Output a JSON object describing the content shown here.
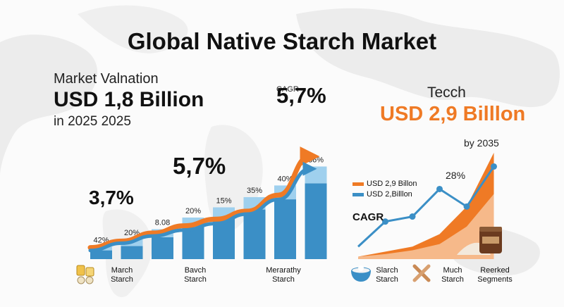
{
  "title": "Global Native Starch Market",
  "valuation": {
    "label": "Market Valnation",
    "amount": "USD 1,8 Billion",
    "year": "in 2025 2025"
  },
  "cagr_top": {
    "small": "CAGR",
    "big": "5,7%"
  },
  "growth_labels": {
    "mid": "5,7%",
    "low": "3,7%"
  },
  "forecast": {
    "label": "Tecch",
    "amount": "USD 2,9 Billlon",
    "year": "by 2035",
    "right_point_label": "28%",
    "cagr_label": "CAGR"
  },
  "legend": [
    {
      "label": "USD 2,9 Billon",
      "color": "#ef7a25"
    },
    {
      "label": "USD 2,Billlon",
      "color": "#3b8fc6"
    }
  ],
  "colors": {
    "orange": "#ef7a25",
    "blue_dark": "#3b8fc6",
    "blue_light": "#9fd0ee",
    "map": "#e9e9e9"
  },
  "categories": [
    {
      "line1": "March",
      "line2": "Starch",
      "icon": "grain-jars-icon"
    },
    {
      "line1": "Bavch",
      "line2": "Starch",
      "icon": ""
    },
    {
      "line1": "Merarathy",
      "line2": "Starch",
      "icon": ""
    },
    {
      "line1": "Slarch",
      "line2": "Starch",
      "icon": "bowl-icon"
    },
    {
      "line1": "Much",
      "line2": "Starch",
      "icon": "crossed-roots-icon"
    },
    {
      "line1": "Reerked",
      "line2": "Segments",
      "icon": "jar-and-powder-icon"
    }
  ],
  "chart_data": [
    {
      "type": "bar",
      "title": "",
      "categories": [
        "1",
        "2",
        "3",
        "4",
        "5",
        "6",
        "7",
        "8"
      ],
      "series": [
        {
          "values": [
            1.2,
            1.8,
            3.0,
            4.4,
            5.6,
            6.8,
            8.2,
            10.4
          ]
        },
        {
          "values": [
            0.5,
            0.9,
            1.1,
            1.3,
            1.5,
            1.7,
            1.9,
            2.3
          ]
        }
      ],
      "bar_labels": [
        "42%",
        "20%",
        "8.08",
        "20%",
        "15%",
        "35%",
        "40%",
        "86%"
      ],
      "trend_lines": [
        {
          "color": "orange",
          "values": [
            1.0,
            1.9,
            3.0,
            4.0,
            4.9,
            6.0,
            8.2,
            13.5
          ]
        },
        {
          "color": "blue",
          "values": [
            0.6,
            1.6,
            2.6,
            3.4,
            4.3,
            5.6,
            7.6,
            11.8
          ]
        }
      ],
      "ylim": [
        0,
        14
      ]
    },
    {
      "type": "line",
      "title": "",
      "x": [
        1,
        2,
        3,
        4,
        5,
        6
      ],
      "series": [
        {
          "name": "USD 2,Billlon",
          "values": [
            1.0,
            3.0,
            3.4,
            5.6,
            4.2,
            7.4
          ]
        }
      ],
      "area_series": [
        {
          "color": "orange",
          "values": [
            0.2,
            0.6,
            1.0,
            2.0,
            4.2,
            8.5
          ]
        },
        {
          "color": "orange-light",
          "values": [
            0.2,
            0.4,
            0.7,
            1.2,
            2.6,
            5.2
          ]
        }
      ],
      "ylim": [
        0,
        9
      ]
    }
  ]
}
